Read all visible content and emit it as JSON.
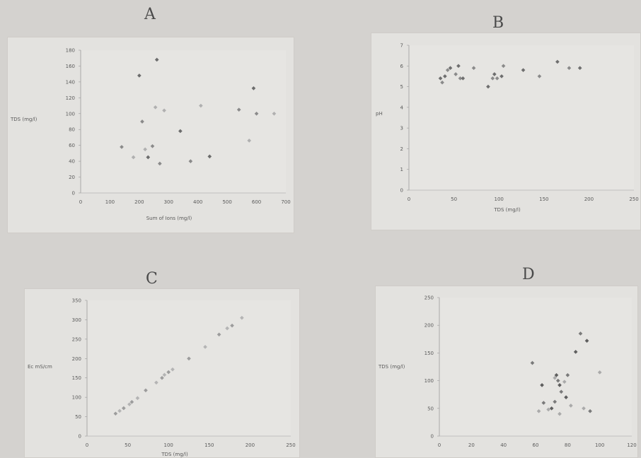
{
  "letters": {
    "a": "A",
    "b": "B",
    "c": "C",
    "d": "D"
  },
  "chart_data": [
    {
      "type": "scatter",
      "panel": "A",
      "ylabel": "TDS (mg/l)",
      "xlabel": "Sum of Ions (mg/l)",
      "xlim": [
        0,
        700
      ],
      "ylim": [
        0,
        180
      ],
      "xticks": [
        "0",
        "100",
        "200",
        "300",
        "400",
        "500",
        "600",
        "700"
      ],
      "yticks": [
        "0",
        "20",
        "40",
        "60",
        "80",
        "100",
        "120",
        "140",
        "160",
        "180"
      ],
      "x": [
        140,
        180,
        200,
        210,
        220,
        230,
        245,
        255,
        260,
        270,
        285,
        340,
        375,
        410,
        440,
        540,
        575,
        590,
        600,
        660
      ],
      "y": [
        58,
        45,
        148,
        90,
        55,
        45,
        59,
        108,
        168,
        37,
        104,
        78,
        40,
        110,
        46,
        105,
        66,
        132,
        100,
        100
      ]
    },
    {
      "type": "scatter",
      "panel": "B",
      "ylabel": "pH",
      "xlabel": "TDS (mg/l)",
      "xlim": [
        0,
        250
      ],
      "ylim": [
        0,
        7
      ],
      "xticks": [
        "0",
        "50",
        "100",
        "150",
        "200",
        "250"
      ],
      "yticks": [
        "0",
        "1",
        "2",
        "3",
        "4",
        "5",
        "6",
        "7"
      ],
      "x": [
        35,
        37,
        40,
        43,
        46,
        52,
        55,
        57,
        60,
        72,
        88,
        93,
        95,
        98,
        103,
        105,
        127,
        145,
        165,
        178,
        190
      ],
      "y": [
        5.4,
        5.2,
        5.5,
        5.8,
        5.9,
        5.6,
        6.0,
        5.4,
        5.4,
        5.9,
        5.0,
        5.4,
        5.6,
        5.4,
        5.5,
        6.0,
        5.8,
        5.5,
        6.2,
        5.9,
        5.9
      ]
    },
    {
      "type": "scatter",
      "panel": "C",
      "ylabel": "Ec mS/cm",
      "xlabel": "TDS (mg/l)",
      "xlim": [
        0,
        250
      ],
      "ylim": [
        0,
        350
      ],
      "xticks": [
        "0",
        "50",
        "100",
        "150",
        "200",
        "250"
      ],
      "yticks": [
        "0",
        "50",
        "100",
        "150",
        "200",
        "250",
        "300",
        "350"
      ],
      "x": [
        35,
        40,
        45,
        52,
        55,
        62,
        72,
        85,
        92,
        95,
        100,
        105,
        125,
        145,
        162,
        172,
        178,
        190
      ],
      "y": [
        58,
        65,
        72,
        82,
        88,
        98,
        118,
        138,
        150,
        158,
        165,
        172,
        200,
        230,
        262,
        278,
        285,
        305
      ]
    },
    {
      "type": "scatter",
      "panel": "D",
      "ylabel": "TDS (mg/l)",
      "xlabel": "",
      "xlim": [
        0,
        120
      ],
      "ylim": [
        0,
        250
      ],
      "xticks": [
        "0",
        "20",
        "40",
        "60",
        "80",
        "100",
        "120"
      ],
      "yticks": [
        "0",
        "50",
        "100",
        "150",
        "200",
        "250"
      ],
      "x": [
        58,
        62,
        64,
        65,
        68,
        70,
        72,
        72,
        73,
        74,
        75,
        75,
        76,
        78,
        79,
        80,
        82,
        85,
        88,
        90,
        92,
        94,
        100
      ],
      "y": [
        132,
        45,
        92,
        60,
        48,
        50,
        62,
        105,
        110,
        100,
        40,
        92,
        80,
        98,
        70,
        110,
        55,
        152,
        185,
        50,
        172,
        45,
        115
      ]
    }
  ]
}
